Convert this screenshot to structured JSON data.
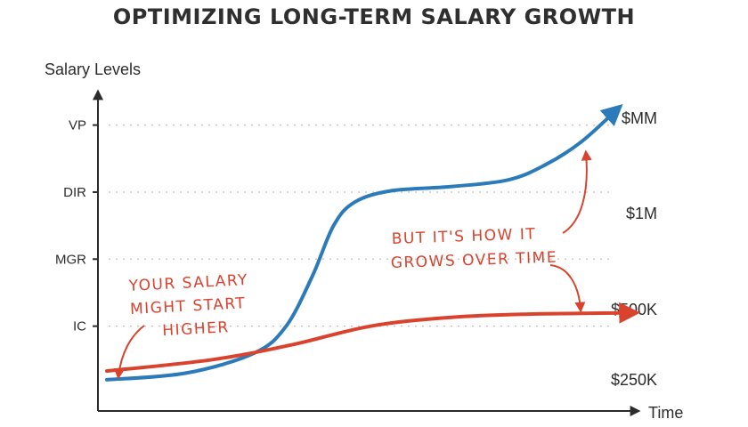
{
  "chart_data": {
    "type": "line",
    "title": "OPTIMIZING LONG-TERM SALARY GROWTH",
    "ylabel": "Salary Levels",
    "xlabel": "Time",
    "y_levels": [
      "IC",
      "MGR",
      "DIR",
      "VP"
    ],
    "right_labels": [
      "$250K",
      "$500K",
      "$1M",
      "$MM"
    ],
    "xlim": [
      0,
      10
    ],
    "ylim": [
      0,
      4.3
    ],
    "grid": true,
    "series": [
      {
        "color": "#2b7bba",
        "x": [
          0,
          1.5,
          2.8,
          3.4,
          3.9,
          4.3,
          4.7,
          5.4,
          6.5,
          7.6,
          8.3,
          9.0,
          9.7
        ],
        "y": [
          0.2,
          0.3,
          0.6,
          1.0,
          1.75,
          2.5,
          2.85,
          3.02,
          3.08,
          3.18,
          3.4,
          3.75,
          4.25
        ]
      },
      {
        "color": "#d9432e",
        "x": [
          0,
          2.0,
          3.5,
          5.0,
          6.5,
          8.0,
          9.0,
          10.0
        ],
        "y": [
          0.33,
          0.5,
          0.72,
          1.0,
          1.13,
          1.18,
          1.19,
          1.2
        ]
      }
    ],
    "annotations": [
      {
        "id": "left",
        "lines": [
          "YOUR SALARY",
          "MIGHT START",
          "HIGHER"
        ],
        "color": "#d9432e"
      },
      {
        "id": "right",
        "lines": [
          "BUT IT'S HOW IT",
          "GROWS OVER TIME"
        ],
        "color": "#d9432e"
      }
    ]
  }
}
